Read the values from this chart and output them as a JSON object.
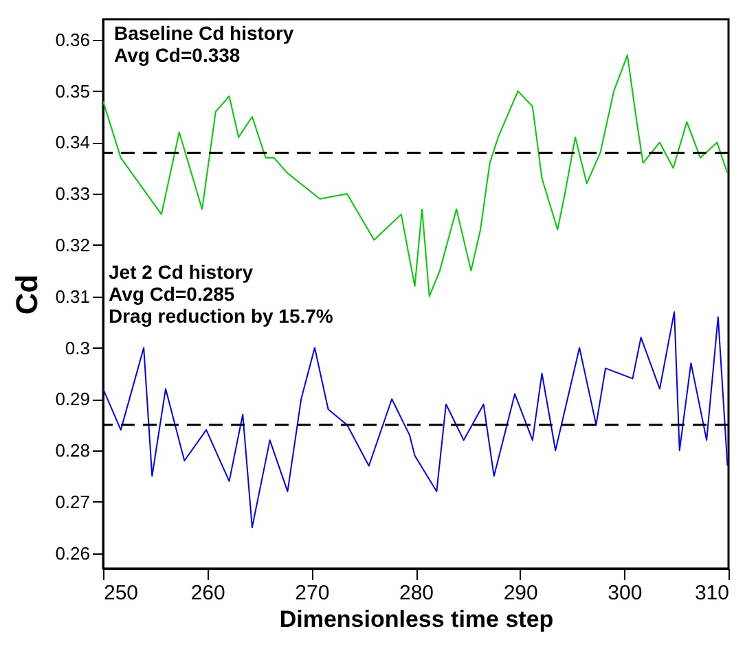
{
  "chart_data": {
    "type": "line",
    "xlabel": "Dimensionless time step",
    "ylabel": "Cd",
    "xlim": [
      250,
      310
    ],
    "xticks": [
      250,
      260,
      270,
      280,
      290,
      300,
      310
    ],
    "ylim": [
      0.257,
      0.364
    ],
    "yticks": [
      0.26,
      0.27,
      0.28,
      0.29,
      0.3,
      0.31,
      0.32,
      0.33,
      0.34,
      0.35,
      0.36
    ],
    "grid": false,
    "marker": "none",
    "line_style": "solid",
    "series": [
      {
        "color": "#00cc00",
        "x": [
          250,
          251.7,
          255.6,
          257.3,
          259.5,
          260.8,
          262.1,
          263,
          264.3,
          265.6,
          266.4,
          267.7,
          270.8,
          273.4,
          276,
          278.6,
          279.9,
          280.6,
          281.3,
          282.3,
          283.9,
          285.3,
          286.2,
          287.1,
          287.9,
          289.8,
          291.2,
          292.1,
          293.6,
          294.3,
          295.3,
          296.4,
          297.7,
          299,
          300.3,
          301.2,
          301.8,
          303.4,
          304.7,
          306,
          307.3,
          308.9,
          309.9
        ],
        "values": [
          0.348,
          0.337,
          0.326,
          0.342,
          0.327,
          0.346,
          0.349,
          0.341,
          0.345,
          0.337,
          0.337,
          0.334,
          0.329,
          0.33,
          0.321,
          0.326,
          0.312,
          0.327,
          0.31,
          0.315,
          0.327,
          0.315,
          0.323,
          0.336,
          0.341,
          0.35,
          0.347,
          0.333,
          0.323,
          0.33,
          0.341,
          0.332,
          0.338,
          0.35,
          0.357,
          0.344,
          0.336,
          0.34,
          0.335,
          0.344,
          0.337,
          0.34,
          0.334
        ]
      },
      {
        "color": "#0000ff",
        "x": [
          250,
          251.7,
          253.9,
          254.7,
          256,
          257.8,
          259.9,
          262.1,
          263.4,
          264.3,
          266,
          267.7,
          269,
          270.3,
          271.6,
          273.4,
          275.5,
          277.7,
          279.4,
          279.9,
          282,
          282.9,
          284.6,
          286.5,
          287.5,
          289.5,
          291.2,
          292.1,
          293.4,
          295.7,
          297.3,
          298.2,
          300.8,
          301.6,
          303.4,
          304.8,
          305.3,
          306.4,
          307.9,
          309,
          309.9
        ],
        "values": [
          0.292,
          0.284,
          0.3,
          0.275,
          0.292,
          0.278,
          0.284,
          0.274,
          0.287,
          0.265,
          0.282,
          0.272,
          0.29,
          0.3,
          0.288,
          0.285,
          0.277,
          0.29,
          0.283,
          0.279,
          0.272,
          0.289,
          0.282,
          0.289,
          0.275,
          0.291,
          0.282,
          0.295,
          0.28,
          0.3,
          0.285,
          0.296,
          0.294,
          0.302,
          0.292,
          0.307,
          0.28,
          0.297,
          0.282,
          0.306,
          0.277
        ]
      }
    ],
    "ref_lines": [
      {
        "axis": "y",
        "value": 0.338,
        "color": "#000000",
        "line_style": "dashed"
      },
      {
        "axis": "y",
        "value": 0.285,
        "color": "#000000",
        "line_style": "dashed"
      }
    ],
    "annotations": [
      "Baseline Cd history\nAvg Cd=0.338",
      "Jet 2 Cd history\nAvg Cd=0.285\nDrag reduction by 15.7%"
    ]
  }
}
